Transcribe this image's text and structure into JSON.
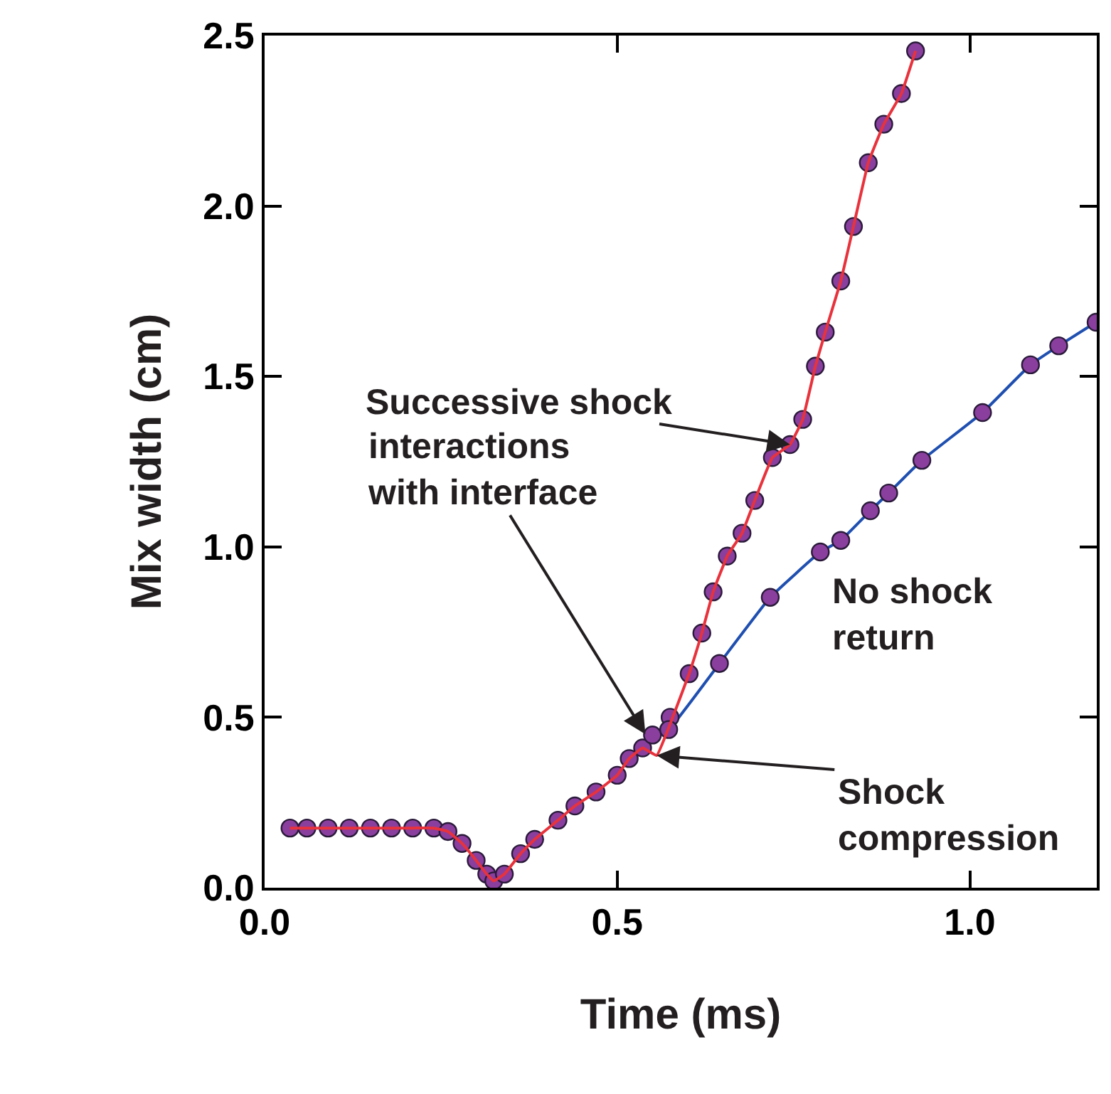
{
  "chart_data": {
    "type": "scatter",
    "xlabel": "Time (ms)",
    "ylabel": "Mix width (cm)",
    "xlim": [
      0,
      1.18
    ],
    "ylim": [
      0,
      2.5
    ],
    "xticks": [
      {
        "value": 0,
        "label": "0.0"
      },
      {
        "value": 0.5,
        "label": "0.5"
      },
      {
        "value": 1,
        "label": "1.0"
      }
    ],
    "yticks": [
      {
        "value": 0,
        "label": "0.0"
      },
      {
        "value": 0.5,
        "label": "0.5"
      },
      {
        "value": 1,
        "label": "1.0"
      },
      {
        "value": 1.5,
        "label": "1.5"
      },
      {
        "value": 2,
        "label": "2.0"
      },
      {
        "value": 2.5,
        "label": "2.5"
      }
    ],
    "series": [
      {
        "type": "line",
        "color": "#1f4fb0",
        "marker": "none",
        "x": [
          0.53,
          0.55,
          0.573,
          0.645,
          0.717,
          0.788,
          0.817,
          0.859,
          0.885,
          0.932,
          1.018,
          1.086,
          1.126,
          1.179
        ],
        "values": [
          0.41,
          0.448,
          0.464,
          0.658,
          0.852,
          0.985,
          1.019,
          1.106,
          1.158,
          1.254,
          1.394,
          1.534,
          1.59,
          1.659
        ]
      },
      {
        "color": "#8a3f9e",
        "marker": "circle",
        "x": [
          0.036,
          0.06,
          0.09,
          0.12,
          0.15,
          0.18,
          0.21,
          0.24,
          0.26,
          0.28,
          0.3,
          0.315,
          0.325,
          0.34,
          0.363,
          0.383,
          0.416,
          0.44,
          0.47,
          0.5,
          0.517,
          0.536,
          0.55,
          0.575,
          0.602,
          0.62,
          0.636,
          0.656,
          0.677,
          0.695,
          0.72,
          0.745,
          0.763,
          0.781,
          0.795,
          0.817,
          0.835,
          0.856,
          0.878,
          0.903,
          0.923
        ],
        "values": [
          0.175,
          0.175,
          0.175,
          0.175,
          0.175,
          0.175,
          0.175,
          0.175,
          0.165,
          0.13,
          0.08,
          0.04,
          0.02,
          0.04,
          0.1,
          0.142,
          0.198,
          0.24,
          0.281,
          0.33,
          0.379,
          0.41,
          0.448,
          0.5,
          0.628,
          0.747,
          0.868,
          0.973,
          1.04,
          1.136,
          1.262,
          1.3,
          1.374,
          1.53,
          1.63,
          1.78,
          1.94,
          2.127,
          2.24,
          2.33,
          2.455
        ]
      },
      {
        "color": "#8a3f9e",
        "marker": "circle",
        "x": [
          0.573,
          0.645,
          0.717,
          0.788,
          0.817,
          0.859,
          0.885,
          0.932,
          1.018,
          1.086,
          1.126,
          1.179
        ],
        "values": [
          0.464,
          0.658,
          0.852,
          0.985,
          1.019,
          1.106,
          1.158,
          1.254,
          1.394,
          1.534,
          1.59,
          1.659
        ]
      },
      {
        "type": "line",
        "color": "#e8323c",
        "marker": "none",
        "x": [
          0.036,
          0.06,
          0.09,
          0.12,
          0.15,
          0.18,
          0.21,
          0.24,
          0.26,
          0.28,
          0.3,
          0.315,
          0.325,
          0.34,
          0.363,
          0.383,
          0.416,
          0.44,
          0.47,
          0.5,
          0.517,
          0.536,
          0.556,
          0.575,
          0.602,
          0.62,
          0.636,
          0.656,
          0.677,
          0.695,
          0.72,
          0.745,
          0.763,
          0.781,
          0.795,
          0.817,
          0.835,
          0.856,
          0.878,
          0.903,
          0.923
        ],
        "values": [
          0.175,
          0.175,
          0.175,
          0.175,
          0.175,
          0.175,
          0.175,
          0.175,
          0.165,
          0.13,
          0.08,
          0.04,
          0.02,
          0.04,
          0.1,
          0.142,
          0.198,
          0.24,
          0.281,
          0.33,
          0.379,
          0.41,
          0.388,
          0.48,
          0.628,
          0.747,
          0.868,
          0.973,
          1.04,
          1.136,
          1.262,
          1.3,
          1.374,
          1.53,
          1.63,
          1.78,
          1.94,
          2.127,
          2.24,
          2.33,
          2.455
        ]
      }
    ],
    "annotations": [
      {
        "text": "Successive shock",
        "x": 0.745,
        "y": 1.3
      },
      {
        "text": "interactions\nwith interface",
        "x": 0.54,
        "y": 0.45
      },
      {
        "text": "Shock\ncompression",
        "x": 0.556,
        "y": 0.388
      },
      "No shock\nreturn"
    ]
  }
}
